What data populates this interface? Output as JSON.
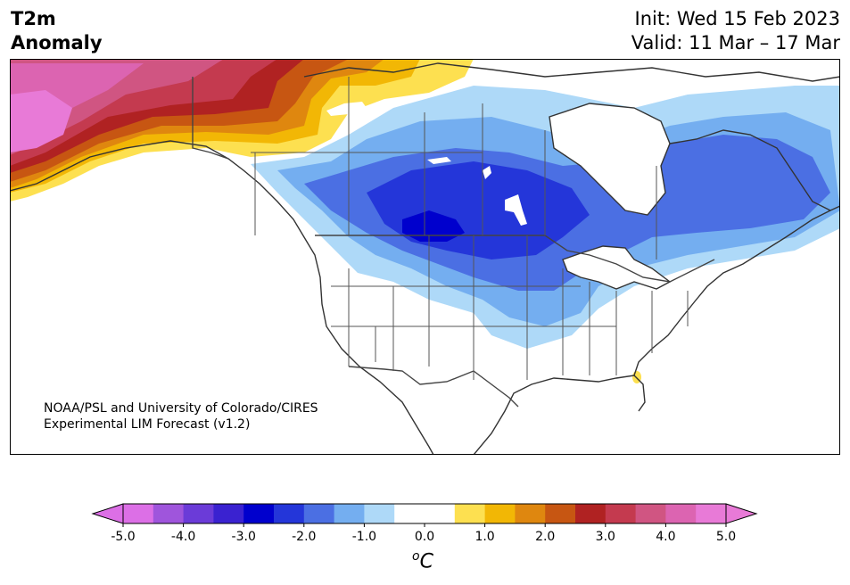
{
  "header": {
    "variable": "T2m",
    "type": "Anomaly",
    "init": "Init: Wed 15 Feb 2023",
    "valid": "Valid: 11 Mar – 17 Mar"
  },
  "credit": {
    "line1": "NOAA/PSL and University of Colorado/CIRES",
    "line2": "Experimental LIM Forecast (v1.2)"
  },
  "colorbar": {
    "ticks": [
      "-5.0",
      "-4.0",
      "-3.0",
      "-2.0",
      "-1.0",
      "0.0",
      "1.0",
      "2.0",
      "3.0",
      "4.0",
      "5.0"
    ],
    "unit_base": "C",
    "unit_sup": "o",
    "colors": [
      "#dc6fe6",
      "#9f55dc",
      "#6b3bd8",
      "#3a22d0",
      "#0000cd",
      "#2436d9",
      "#4b6fe3",
      "#74aef0",
      "#aed9f8",
      "#ffffff",
      "#ffffff",
      "#fde050",
      "#f2b705",
      "#df870f",
      "#c75612",
      "#b02222",
      "#c43a4f",
      "#d05582",
      "#dc64b1",
      "#e87ad7"
    ]
  },
  "map": {
    "region": "North America",
    "features": [
      "coastlines",
      "country-borders",
      "state-province-borders"
    ]
  }
}
